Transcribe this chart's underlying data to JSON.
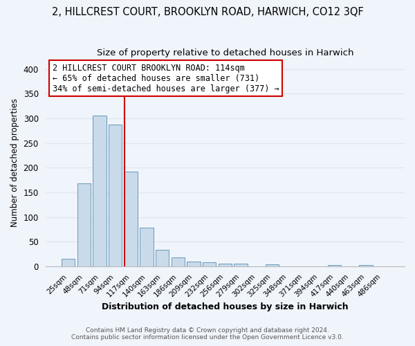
{
  "title": "2, HILLCREST COURT, BROOKLYN ROAD, HARWICH, CO12 3QF",
  "subtitle": "Size of property relative to detached houses in Harwich",
  "xlabel": "Distribution of detached houses by size in Harwich",
  "ylabel": "Number of detached properties",
  "bar_labels": [
    "25sqm",
    "48sqm",
    "71sqm",
    "94sqm",
    "117sqm",
    "140sqm",
    "163sqm",
    "186sqm",
    "209sqm",
    "232sqm",
    "256sqm",
    "279sqm",
    "302sqm",
    "325sqm",
    "348sqm",
    "371sqm",
    "394sqm",
    "417sqm",
    "440sqm",
    "463sqm",
    "486sqm"
  ],
  "bar_values": [
    15,
    168,
    306,
    288,
    192,
    78,
    33,
    18,
    9,
    8,
    5,
    5,
    0,
    4,
    0,
    0,
    0,
    2,
    0,
    3,
    0
  ],
  "bar_color": "#c9daea",
  "bar_edge_color": "#6699bb",
  "vline_color": "#cc0000",
  "vline_bar_index": 4,
  "annotation_title": "2 HILLCREST COURT BROOKLYN ROAD: 114sqm",
  "annotation_line1": "← 65% of detached houses are smaller (731)",
  "annotation_line2": "34% of semi-detached houses are larger (377) →",
  "annotation_box_color": "#ffffff",
  "annotation_box_edge": "#cc0000",
  "ylim": [
    0,
    420
  ],
  "yticks": [
    0,
    50,
    100,
    150,
    200,
    250,
    300,
    350,
    400
  ],
  "footer1": "Contains HM Land Registry data © Crown copyright and database right 2024.",
  "footer2": "Contains public sector information licensed under the Open Government Licence v3.0.",
  "bg_color": "#f0f4fb",
  "grid_color": "#e0e8f0",
  "title_fontsize": 10.5,
  "subtitle_fontsize": 9.5
}
